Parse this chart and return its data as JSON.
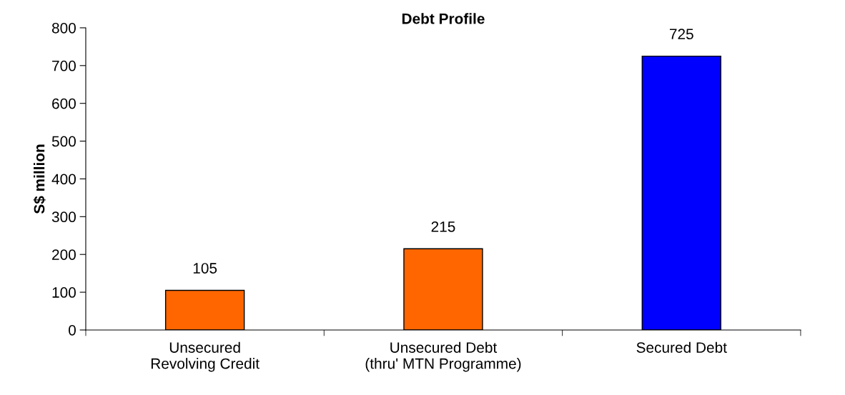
{
  "chart_data": {
    "type": "bar",
    "title": "Debt Profile",
    "ylabel": "S$ million",
    "categories": [
      "Unsecured\nRevolving Credit",
      "Unsecured Debt\n(thru' MTN Programme)",
      "Secured Debt"
    ],
    "values": [
      105,
      215,
      725
    ],
    "colors": [
      "#ff6600",
      "#ff6600",
      "#0000ff"
    ],
    "ylim": [
      0,
      800
    ],
    "yticks": [
      0,
      100,
      200,
      300,
      400,
      500,
      600,
      700,
      800
    ],
    "data_labels": true,
    "grid": false,
    "legend": false
  }
}
